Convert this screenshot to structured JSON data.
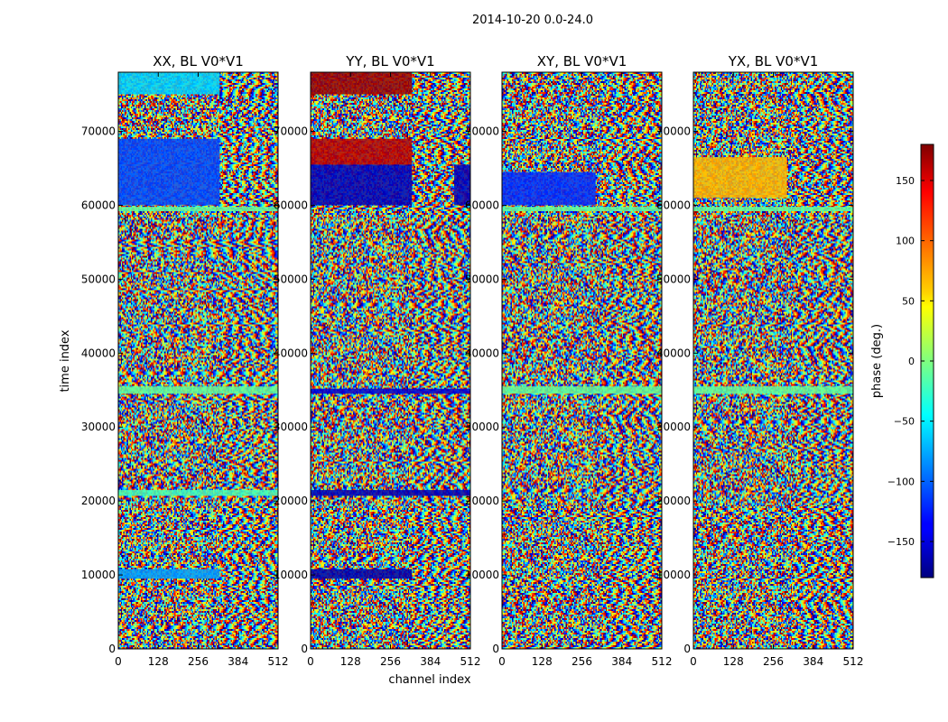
{
  "chart_data": {
    "type": "heatmap",
    "suptitle": "2014-10-20 0.0-24.0",
    "xlabel": "channel index",
    "ylabel": "time index",
    "xlim": [
      0,
      512
    ],
    "ylim": [
      0,
      78000
    ],
    "x_ticks": [
      0,
      128,
      256,
      384,
      512
    ],
    "y_ticks": [
      0,
      10000,
      20000,
      30000,
      40000,
      50000,
      60000,
      70000
    ],
    "colormap": "jet",
    "colorbar": {
      "label": "phase (deg.)",
      "range": [
        -180,
        180
      ],
      "ticks": [
        -150,
        -100,
        -50,
        0,
        50,
        100,
        150
      ],
      "tick_labels": [
        "−150",
        "−100",
        "−50",
        "0",
        "50",
        "100",
        "150"
      ]
    },
    "panels": [
      {
        "title": "XX, BL V0*V1",
        "bands": [
          {
            "y": [
              60000,
              69000
            ],
            "x": [
              0,
              325
            ],
            "phase": -110
          },
          {
            "y": [
              9500,
              10800
            ],
            "x": [
              0,
              325
            ],
            "phase": -80
          },
          {
            "y": [
              20700,
              21500
            ],
            "x": [
              0,
              512
            ],
            "phase": -20
          },
          {
            "y": [
              34500,
              35500
            ],
            "x": [
              0,
              512
            ],
            "phase": -10
          },
          {
            "y": [
              59200,
              59800
            ],
            "x": [
              0,
              512
            ],
            "phase": -10
          },
          {
            "y": [
              75000,
              78000
            ],
            "x": [
              0,
              325
            ],
            "phase": -60
          }
        ]
      },
      {
        "title": "YY, BL V0*V1",
        "bands": [
          {
            "y": [
              60000,
              65500
            ],
            "x": [
              0,
              325
            ],
            "phase": -160
          },
          {
            "y": [
              65500,
              69000
            ],
            "x": [
              0,
              325
            ],
            "phase": 160
          },
          {
            "y": [
              60000,
              65500
            ],
            "x": [
              460,
              512
            ],
            "phase": -160
          },
          {
            "y": [
              9500,
              10800
            ],
            "x": [
              0,
              325
            ],
            "phase": -165
          },
          {
            "y": [
              20700,
              21500
            ],
            "x": [
              0,
              512
            ],
            "phase": -160
          },
          {
            "y": [
              34500,
              35200
            ],
            "x": [
              0,
              512
            ],
            "phase": -150
          },
          {
            "y": [
              75000,
              78000
            ],
            "x": [
              0,
              325
            ],
            "phase": 170
          }
        ]
      },
      {
        "title": "XY, BL V0*V1",
        "bands": [
          {
            "y": [
              60000,
              64500
            ],
            "x": [
              0,
              300
            ],
            "phase": -120
          },
          {
            "y": [
              34500,
              35500
            ],
            "x": [
              0,
              512
            ],
            "phase": -10
          },
          {
            "y": [
              59200,
              59800
            ],
            "x": [
              0,
              512
            ],
            "phase": -10
          }
        ]
      },
      {
        "title": "YX, BL V0*V1",
        "bands": [
          {
            "y": [
              61000,
              66500
            ],
            "x": [
              0,
              300
            ],
            "phase": 70
          },
          {
            "y": [
              34500,
              35500
            ],
            "x": [
              0,
              512
            ],
            "phase": -10
          },
          {
            "y": [
              59200,
              59800
            ],
            "x": [
              0,
              512
            ],
            "phase": -10
          }
        ]
      }
    ]
  }
}
